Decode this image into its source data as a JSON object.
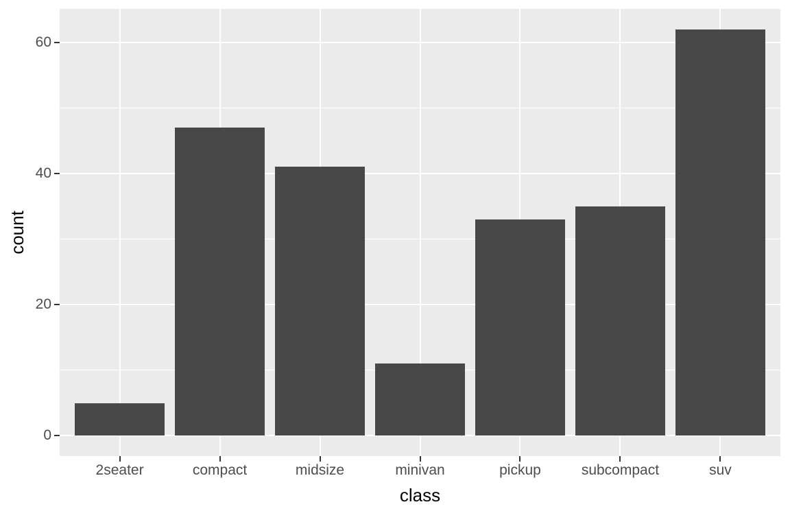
{
  "chart_data": {
    "type": "bar",
    "title": "",
    "xlabel": "class",
    "ylabel": "count",
    "categories": [
      "2seater",
      "compact",
      "midsize",
      "minivan",
      "pickup",
      "subcompact",
      "suv"
    ],
    "values": [
      5,
      47,
      41,
      11,
      33,
      35,
      62
    ],
    "y_major_ticks": [
      0,
      20,
      40,
      60
    ],
    "y_minor_gridlines": [
      10,
      30,
      50
    ],
    "ylim_expanded": [
      -3.1,
      65.1
    ],
    "bar_rel_width": 0.9,
    "discrete_expand": 0.6,
    "grid": "on",
    "legend": "none",
    "colors": {
      "bar_fill": "#484848",
      "panel_bg": "#EBEBEB",
      "grid_major": "#FFFFFF",
      "grid_minor": "#FFFFFF",
      "axis_text": "#4D4D4D",
      "axis_title": "#000000",
      "tick_mark": "#333333",
      "figure_bg": "#FFFFFF"
    }
  }
}
